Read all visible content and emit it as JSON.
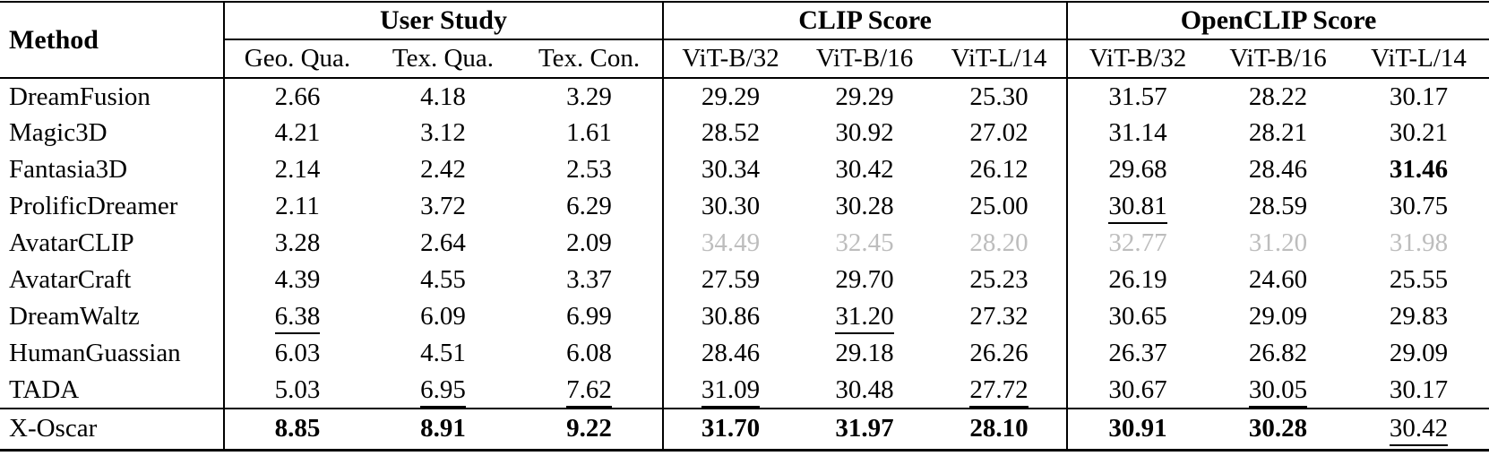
{
  "colors": {
    "text": "#000000",
    "muted_value": "#bdbdbd",
    "rule": "#000000",
    "background": "#ffffff"
  },
  "table": {
    "header": {
      "method": "Method",
      "groups": [
        {
          "label": "User Study",
          "subcols": [
            "Geo. Qua.",
            "Tex. Qua.",
            "Tex. Con."
          ]
        },
        {
          "label": "CLIP Score",
          "subcols": [
            "ViT-B/32",
            "ViT-B/16",
            "ViT-L/14"
          ]
        },
        {
          "label": "OpenCLIP Score",
          "subcols": [
            "ViT-B/32",
            "ViT-B/16",
            "ViT-L/14"
          ]
        }
      ]
    },
    "rows": [
      {
        "method": "DreamFusion",
        "cells": [
          {
            "v": "2.66"
          },
          {
            "v": "4.18"
          },
          {
            "v": "3.29"
          },
          {
            "v": "29.29"
          },
          {
            "v": "29.29"
          },
          {
            "v": "25.30"
          },
          {
            "v": "31.57"
          },
          {
            "v": "28.22"
          },
          {
            "v": "30.17"
          }
        ]
      },
      {
        "method": "Magic3D",
        "cells": [
          {
            "v": "4.21"
          },
          {
            "v": "3.12"
          },
          {
            "v": "1.61"
          },
          {
            "v": "28.52"
          },
          {
            "v": "30.92"
          },
          {
            "v": "27.02"
          },
          {
            "v": "31.14"
          },
          {
            "v": "28.21"
          },
          {
            "v": "30.21"
          }
        ]
      },
      {
        "method": "Fantasia3D",
        "cells": [
          {
            "v": "2.14"
          },
          {
            "v": "2.42"
          },
          {
            "v": "2.53"
          },
          {
            "v": "30.34"
          },
          {
            "v": "30.42"
          },
          {
            "v": "26.12"
          },
          {
            "v": "29.68"
          },
          {
            "v": "28.46"
          },
          {
            "v": "31.46",
            "b": true
          }
        ]
      },
      {
        "method": "ProlificDreamer",
        "cells": [
          {
            "v": "2.11"
          },
          {
            "v": "3.72"
          },
          {
            "v": "6.29"
          },
          {
            "v": "30.30"
          },
          {
            "v": "30.28"
          },
          {
            "v": "25.00"
          },
          {
            "v": "30.81",
            "u": true
          },
          {
            "v": "28.59"
          },
          {
            "v": "30.75"
          }
        ]
      },
      {
        "method": "AvatarCLIP",
        "cells": [
          {
            "v": "3.28"
          },
          {
            "v": "2.64"
          },
          {
            "v": "2.09"
          },
          {
            "v": "34.49",
            "g": true
          },
          {
            "v": "32.45",
            "g": true
          },
          {
            "v": "28.20",
            "g": true
          },
          {
            "v": "32.77",
            "g": true
          },
          {
            "v": "31.20",
            "g": true
          },
          {
            "v": "31.98",
            "g": true
          }
        ]
      },
      {
        "method": "AvatarCraft",
        "cells": [
          {
            "v": "4.39"
          },
          {
            "v": "4.55"
          },
          {
            "v": "3.37"
          },
          {
            "v": "27.59"
          },
          {
            "v": "29.70"
          },
          {
            "v": "25.23"
          },
          {
            "v": "26.19"
          },
          {
            "v": "24.60"
          },
          {
            "v": "25.55"
          }
        ]
      },
      {
        "method": "DreamWaltz",
        "cells": [
          {
            "v": "6.38",
            "u": true
          },
          {
            "v": "6.09"
          },
          {
            "v": "6.99"
          },
          {
            "v": "30.86"
          },
          {
            "v": "31.20",
            "u": true
          },
          {
            "v": "27.32"
          },
          {
            "v": "30.65"
          },
          {
            "v": "29.09"
          },
          {
            "v": "29.83"
          }
        ]
      },
      {
        "method": "HumanGuassian",
        "cells": [
          {
            "v": "6.03"
          },
          {
            "v": "4.51"
          },
          {
            "v": "6.08"
          },
          {
            "v": "28.46"
          },
          {
            "v": "29.18"
          },
          {
            "v": "26.26"
          },
          {
            "v": "26.37"
          },
          {
            "v": "26.82"
          },
          {
            "v": "29.09"
          }
        ]
      },
      {
        "method": "TADA",
        "cells": [
          {
            "v": "5.03"
          },
          {
            "v": "6.95",
            "u": true
          },
          {
            "v": "7.62",
            "u": true
          },
          {
            "v": "31.09",
            "u": true
          },
          {
            "v": "30.48"
          },
          {
            "v": "27.72",
            "u": true
          },
          {
            "v": "30.67"
          },
          {
            "v": "30.05",
            "u": true
          },
          {
            "v": "30.17"
          }
        ]
      },
      {
        "method": "X-Oscar",
        "cells": [
          {
            "v": "8.85",
            "b": true
          },
          {
            "v": "8.91",
            "b": true
          },
          {
            "v": "9.22",
            "b": true
          },
          {
            "v": "31.70",
            "b": true
          },
          {
            "v": "31.97",
            "b": true
          },
          {
            "v": "28.10",
            "b": true
          },
          {
            "v": "30.91",
            "b": true
          },
          {
            "v": "30.28",
            "b": true
          },
          {
            "v": "30.42",
            "u": true
          }
        ]
      }
    ]
  }
}
